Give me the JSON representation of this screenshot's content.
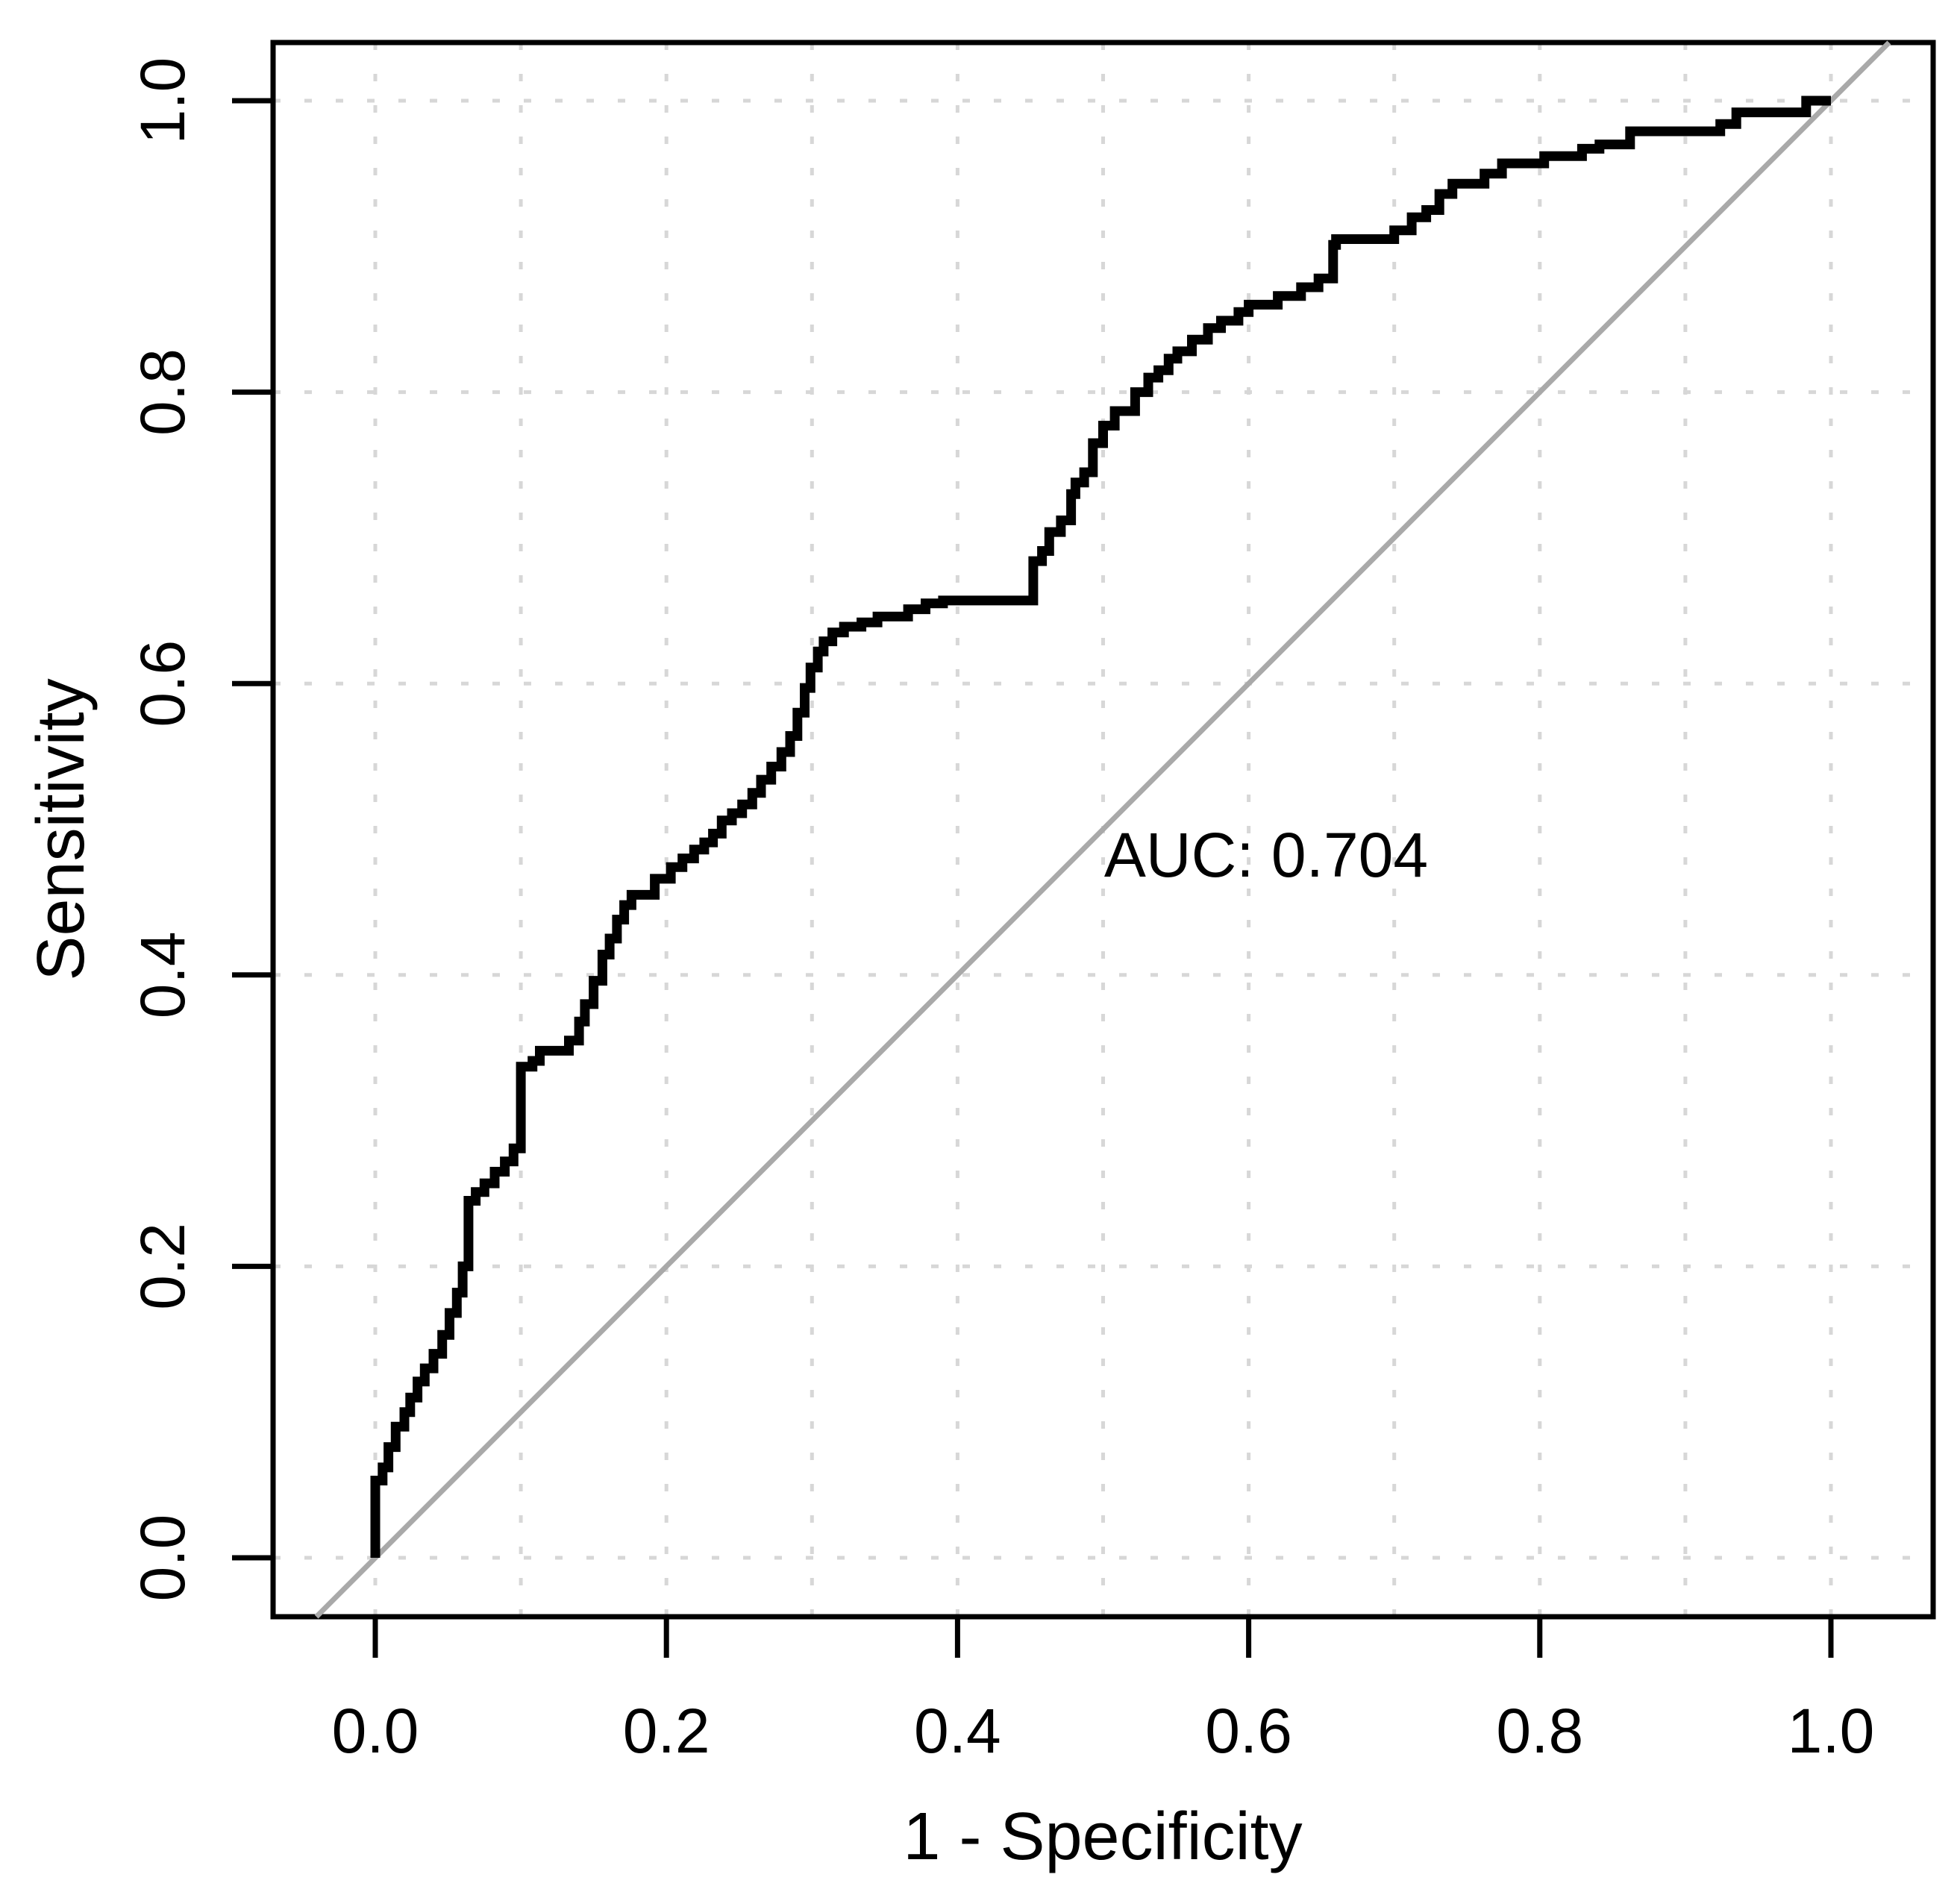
{
  "chart_data": {
    "type": "line",
    "subtype": "roc-curve",
    "title": "",
    "xlabel": "1 - Specificity",
    "ylabel": "Sensitivity",
    "annotation": "AUC: 0.704",
    "auc_value": 0.704,
    "xlim": [
      0,
      1
    ],
    "ylim": [
      0,
      1
    ],
    "x_tick_values": [
      0,
      0.2,
      0.4,
      0.6,
      0.8,
      1
    ],
    "x_tick_labels": [
      "0.0",
      "0.2",
      "0.4",
      "0.6",
      "0.8",
      "1.0"
    ],
    "y_tick_values": [
      0,
      0.2,
      0.4,
      0.6,
      0.8,
      1
    ],
    "y_tick_labels": [
      "0.0",
      "0.2",
      "0.4",
      "0.6",
      "0.8",
      "1.0"
    ],
    "x_gridline_values": [
      0,
      0.1,
      0.2,
      0.3,
      0.4,
      0.5,
      0.6,
      0.7,
      0.8,
      0.9,
      1.0
    ],
    "y_gridline_values": [
      0,
      0.2,
      0.4,
      0.6,
      0.8,
      1.0
    ],
    "grid": "dotted",
    "legend_position": "none",
    "reference_line": {
      "type": "diagonal-identity",
      "from": [
        0,
        0
      ],
      "to": [
        1,
        1
      ]
    },
    "series": [
      {
        "name": "ROC curve",
        "step": "vertical-first",
        "points": [
          [
            0.0,
            0.0
          ],
          [
            0.0,
            0.044
          ],
          [
            0.005,
            0.053
          ],
          [
            0.009,
            0.062
          ],
          [
            0.014,
            0.076
          ],
          [
            0.02,
            0.09
          ],
          [
            0.024,
            0.1
          ],
          [
            0.029,
            0.11
          ],
          [
            0.034,
            0.121
          ],
          [
            0.04,
            0.13
          ],
          [
            0.046,
            0.14
          ],
          [
            0.051,
            0.153
          ],
          [
            0.056,
            0.168
          ],
          [
            0.06,
            0.182
          ],
          [
            0.064,
            0.2
          ],
          [
            0.069,
            0.245
          ],
          [
            0.075,
            0.251
          ],
          [
            0.082,
            0.257
          ],
          [
            0.089,
            0.265
          ],
          [
            0.095,
            0.272
          ],
          [
            0.1,
            0.281
          ],
          [
            0.108,
            0.337
          ],
          [
            0.113,
            0.341
          ],
          [
            0.133,
            0.348
          ],
          [
            0.14,
            0.355
          ],
          [
            0.144,
            0.368
          ],
          [
            0.15,
            0.38
          ],
          [
            0.156,
            0.396
          ],
          [
            0.161,
            0.414
          ],
          [
            0.166,
            0.425
          ],
          [
            0.171,
            0.438
          ],
          [
            0.176,
            0.448
          ],
          [
            0.192,
            0.455
          ],
          [
            0.203,
            0.466
          ],
          [
            0.211,
            0.474
          ],
          [
            0.219,
            0.48
          ],
          [
            0.226,
            0.486
          ],
          [
            0.232,
            0.491
          ],
          [
            0.238,
            0.497
          ],
          [
            0.245,
            0.506
          ],
          [
            0.252,
            0.511
          ],
          [
            0.259,
            0.517
          ],
          [
            0.265,
            0.525
          ],
          [
            0.272,
            0.534
          ],
          [
            0.279,
            0.543
          ],
          [
            0.285,
            0.553
          ],
          [
            0.29,
            0.564
          ],
          [
            0.295,
            0.58
          ],
          [
            0.299,
            0.597
          ],
          [
            0.304,
            0.611
          ],
          [
            0.308,
            0.622
          ],
          [
            0.314,
            0.629
          ],
          [
            0.322,
            0.635
          ],
          [
            0.334,
            0.639
          ],
          [
            0.345,
            0.642
          ],
          [
            0.366,
            0.646
          ],
          [
            0.378,
            0.651
          ],
          [
            0.39,
            0.655
          ],
          [
            0.452,
            0.657
          ],
          [
            0.458,
            0.684
          ],
          [
            0.463,
            0.691
          ],
          [
            0.471,
            0.704
          ],
          [
            0.478,
            0.712
          ],
          [
            0.481,
            0.73
          ],
          [
            0.487,
            0.738
          ],
          [
            0.493,
            0.745
          ],
          [
            0.5,
            0.765
          ],
          [
            0.508,
            0.777
          ],
          [
            0.522,
            0.787
          ],
          [
            0.531,
            0.8
          ],
          [
            0.538,
            0.81
          ],
          [
            0.545,
            0.815
          ],
          [
            0.551,
            0.823
          ],
          [
            0.561,
            0.828
          ],
          [
            0.572,
            0.836
          ],
          [
            0.581,
            0.844
          ],
          [
            0.593,
            0.849
          ],
          [
            0.6,
            0.855
          ],
          [
            0.62,
            0.86
          ],
          [
            0.636,
            0.866
          ],
          [
            0.648,
            0.872
          ],
          [
            0.658,
            0.878
          ],
          [
            0.66,
            0.901
          ],
          [
            0.7,
            0.905
          ],
          [
            0.712,
            0.911
          ],
          [
            0.722,
            0.92
          ],
          [
            0.731,
            0.925
          ],
          [
            0.74,
            0.936
          ],
          [
            0.762,
            0.943
          ],
          [
            0.774,
            0.95
          ],
          [
            0.803,
            0.957
          ],
          [
            0.829,
            0.962
          ],
          [
            0.841,
            0.967
          ],
          [
            0.862,
            0.97
          ],
          [
            0.924,
            0.979
          ],
          [
            0.935,
            0.984
          ],
          [
            0.983,
            0.992
          ],
          [
            0.993,
            1.0
          ],
          [
            1.0,
            1.0
          ]
        ]
      }
    ],
    "colors": {
      "curve": "#000000",
      "reference": "#a9a9a9",
      "grid": "#d7d7d7",
      "text": "#000000",
      "background": "#ffffff"
    }
  }
}
